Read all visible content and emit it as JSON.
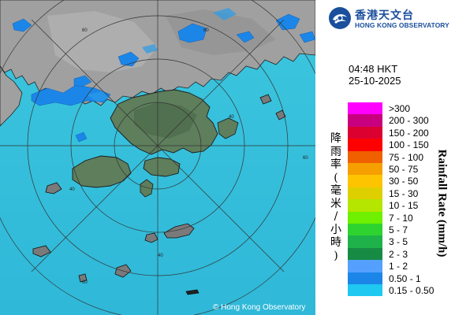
{
  "branding": {
    "name_cn": "香港天文台",
    "name_en": "HONG KONG OBSERVATORY",
    "copyright": "© Hong Kong Observatory"
  },
  "observation": {
    "time": "04:48 HKT",
    "date": "25-10-2025"
  },
  "legend": {
    "title_en": "Rainfall Rate (mm/h)",
    "title_cn": "降雨率(毫米/小時)",
    "items": [
      {
        "label": ">300",
        "color": "#ff00ff"
      },
      {
        "label": "200 - 300",
        "color": "#c8007f"
      },
      {
        "label": "150 - 200",
        "color": "#dc0031"
      },
      {
        "label": "100 - 150",
        "color": "#ff0000"
      },
      {
        "label": "75 - 100",
        "color": "#f06000"
      },
      {
        "label": "50 - 75",
        "color": "#f5a000"
      },
      {
        "label": "30 - 50",
        "color": "#ffc400"
      },
      {
        "label": "15 - 30",
        "color": "#ded000"
      },
      {
        "label": "10 - 15",
        "color": "#b4e600"
      },
      {
        "label": "7 - 10",
        "color": "#6ef000"
      },
      {
        "label": "5 - 7",
        "color": "#2fd32f"
      },
      {
        "label": "3 - 5",
        "color": "#1fb24a"
      },
      {
        "label": "2 - 3",
        "color": "#178a43"
      },
      {
        "label": "1 - 2",
        "color": "#55a0ff"
      },
      {
        "label": "0.50 - 1",
        "color": "#1c86e8"
      },
      {
        "label": "0.15 - 0.50",
        "color": "#1fc8f0"
      }
    ]
  },
  "map": {
    "range_labels": [
      "60",
      "60",
      "40",
      "40",
      "40",
      "60",
      "60"
    ],
    "colors": {
      "sea": "#35c0dc",
      "land_mainland": "#9a9a9a",
      "land_hk": "#5a7a5a",
      "rain_light": "#1c86e8",
      "rings": "#3a3a3a"
    }
  }
}
